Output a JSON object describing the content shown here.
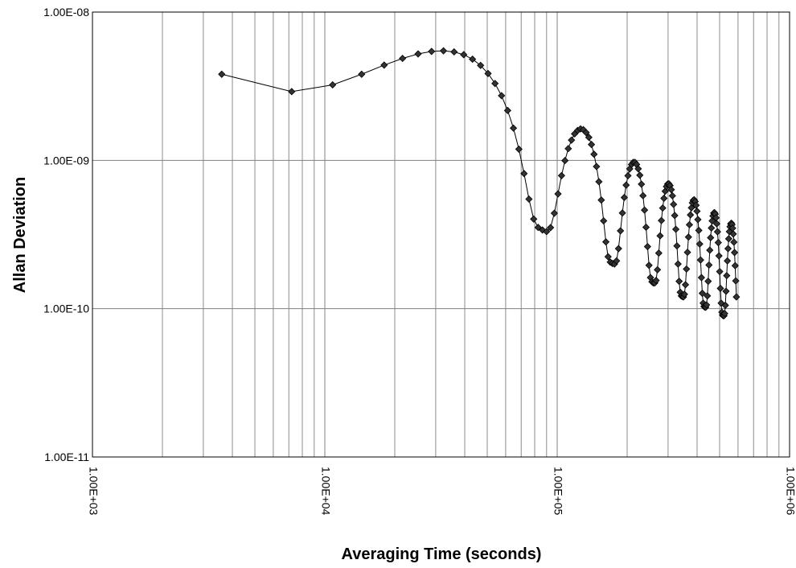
{
  "chart_data": {
    "type": "line",
    "xscale": "log",
    "yscale": "log",
    "grid": true,
    "marker": "diamond",
    "color": "#000000",
    "xlabel": "Averaging Time (seconds)",
    "ylabel": "Allan Deviation",
    "xlim": [
      1000,
      1000000
    ],
    "xticks": [
      {
        "value": 1000,
        "label": "1.00E+03"
      },
      {
        "value": 10000,
        "label": "1.00E+04"
      },
      {
        "value": 100000,
        "label": "1.00E+05"
      },
      {
        "value": 1000000,
        "label": "1.00E+06"
      }
    ],
    "xminorticks": [
      2000,
      3000,
      4000,
      5000,
      6000,
      7000,
      8000,
      9000,
      20000,
      30000,
      40000,
      50000,
      60000,
      70000,
      80000,
      90000,
      200000,
      300000,
      400000,
      500000,
      600000,
      700000,
      800000,
      900000
    ],
    "ylim": [
      1e-11,
      1e-08
    ],
    "yticks": [
      {
        "value": 1e-11,
        "label": "1.00E-11"
      },
      {
        "value": 1e-10,
        "label": "1.00E-10"
      },
      {
        "value": 1e-09,
        "label": "1.00E-09"
      },
      {
        "value": 1e-08,
        "label": "1.00E-08"
      }
    ],
    "x": [
      3600,
      7200,
      10800,
      14400,
      18000,
      21600,
      25200,
      28800,
      32400,
      36000,
      39600,
      43200,
      46800,
      50400,
      54000,
      57600,
      61200,
      64800,
      68400,
      72000,
      75600,
      79200,
      82800,
      86400,
      90000,
      93600,
      97200,
      100800,
      104400,
      108000,
      111600,
      115200,
      118800,
      122400,
      126000,
      129600,
      133200,
      136800,
      140400,
      144000,
      147600,
      151200,
      154800,
      158400,
      162000,
      165600,
      169200,
      172800,
      176400,
      180000,
      183600,
      187200,
      190800,
      194400,
      198000,
      201600,
      205200,
      208800,
      212400,
      216000,
      219600,
      223200,
      226800,
      230400,
      234000,
      237600,
      241200,
      244800,
      248400,
      252000,
      255600,
      259200,
      262800,
      266400,
      270000,
      273600,
      277200,
      280800,
      284400,
      288000,
      291600,
      295200,
      298800,
      302400,
      306000,
      309600,
      313200,
      316800,
      320400,
      324000,
      327600,
      331200,
      334800,
      338400,
      342000,
      345600,
      349200,
      352800,
      356400,
      360000,
      363600,
      367200,
      370800,
      374400,
      378000,
      381600,
      385200,
      388800,
      392400,
      396000,
      399600,
      403200,
      406800,
      410400,
      414000,
      417600,
      421200,
      424800,
      428400,
      432000,
      435600,
      439200,
      442800,
      446400,
      450000,
      453600,
      457200,
      460800,
      464400,
      468000,
      471600,
      475200,
      478800,
      482400,
      486000,
      489600,
      493200,
      496800,
      500400,
      504000,
      507600,
      511200,
      514800,
      518400,
      522000,
      525600,
      529200,
      532800,
      536400,
      540000,
      543600,
      547200,
      550800,
      554400,
      558000,
      561600,
      565200,
      568800,
      572400,
      576000,
      579600,
      583200,
      586800,
      590400
    ],
    "values": [
      3.81e-09,
      2.91e-09,
      3.23e-09,
      3.81e-09,
      4.39e-09,
      4.87e-09,
      5.22e-09,
      5.43e-09,
      5.48e-09,
      5.39e-09,
      5.16e-09,
      4.81e-09,
      4.37e-09,
      3.85e-09,
      3.3e-09,
      2.73e-09,
      2.17e-09,
      1.65e-09,
      1.19e-09,
      8.15e-10,
      5.48e-10,
      4.02e-10,
      3.53e-10,
      3.39e-10,
      3.31e-10,
      3.52e-10,
      4.4e-10,
      5.94e-10,
      7.89e-10,
      9.97e-10,
      1.2e-09,
      1.37e-09,
      1.51e-09,
      1.59e-09,
      1.63e-09,
      1.61e-09,
      1.54e-09,
      1.43e-09,
      1.28e-09,
      1.1e-09,
      9.09e-10,
      7.18e-10,
      5.4e-10,
      3.91e-10,
      2.82e-10,
      2.24e-10,
      2.06e-10,
      2.02e-10,
      2e-10,
      2.1e-10,
      2.54e-10,
      3.35e-10,
      4.42e-10,
      5.62e-10,
      6.81e-10,
      7.88e-10,
      8.76e-10,
      9.38e-10,
      9.7e-10,
      9.7e-10,
      9.39e-10,
      8.78e-10,
      7.94e-10,
      6.91e-10,
      5.78e-10,
      4.62e-10,
      3.54e-10,
      2.62e-10,
      1.96e-10,
      1.62e-10,
      1.52e-10,
      1.49e-10,
      1.49e-10,
      1.55e-10,
      1.83e-10,
      2.37e-10,
      3.1e-10,
      3.93e-10,
      4.77e-10,
      5.55e-10,
      6.19e-10,
      6.66e-10,
      6.92e-10,
      6.95e-10,
      6.76e-10,
      6.35e-10,
      5.77e-10,
      5.05e-10,
      4.25e-10,
      3.43e-10,
      2.65e-10,
      2e-10,
      1.53e-10,
      1.29e-10,
      1.22e-10,
      1.21e-10,
      1.2e-10,
      1.25e-10,
      1.45e-10,
      1.85e-10,
      2.4e-10,
      3.04e-10,
      3.68e-10,
      4.29e-10,
      4.79e-10,
      5.17e-10,
      5.38e-10,
      5.42e-10,
      5.28e-10,
      4.98e-10,
      4.54e-10,
      3.99e-10,
      3.37e-10,
      2.73e-10,
      2.13e-10,
      1.62e-10,
      1.27e-10,
      1.09e-10,
      1.035e-10,
      1.025e-10,
      1.022e-10,
      1.06e-10,
      1.22e-10,
      1.53e-10,
      1.97e-10,
      2.48e-10,
      3.01e-10,
      3.5e-10,
      3.91e-10,
      4.22e-10,
      4.41e-10,
      4.44e-10,
      4.34e-10,
      4.1e-10,
      3.74e-10,
      3.3e-10,
      2.79e-10,
      2.27e-10,
      1.78e-10,
      1.37e-10,
      1.09e-10,
      9.46e-11,
      9.05e-11,
      8.98e-11,
      8.96e-11,
      9.27e-11,
      1.053e-10,
      1.31e-10,
      1.67e-10,
      2.1e-10,
      2.54e-10,
      2.96e-10,
      3.31e-10,
      3.57e-10,
      3.73e-10,
      3.77e-10,
      3.69e-10,
      3.49e-10,
      3.19e-10,
      2.81e-10,
      2.39e-10,
      1.95e-10,
      1.54e-10,
      1.2e-10
    ]
  }
}
